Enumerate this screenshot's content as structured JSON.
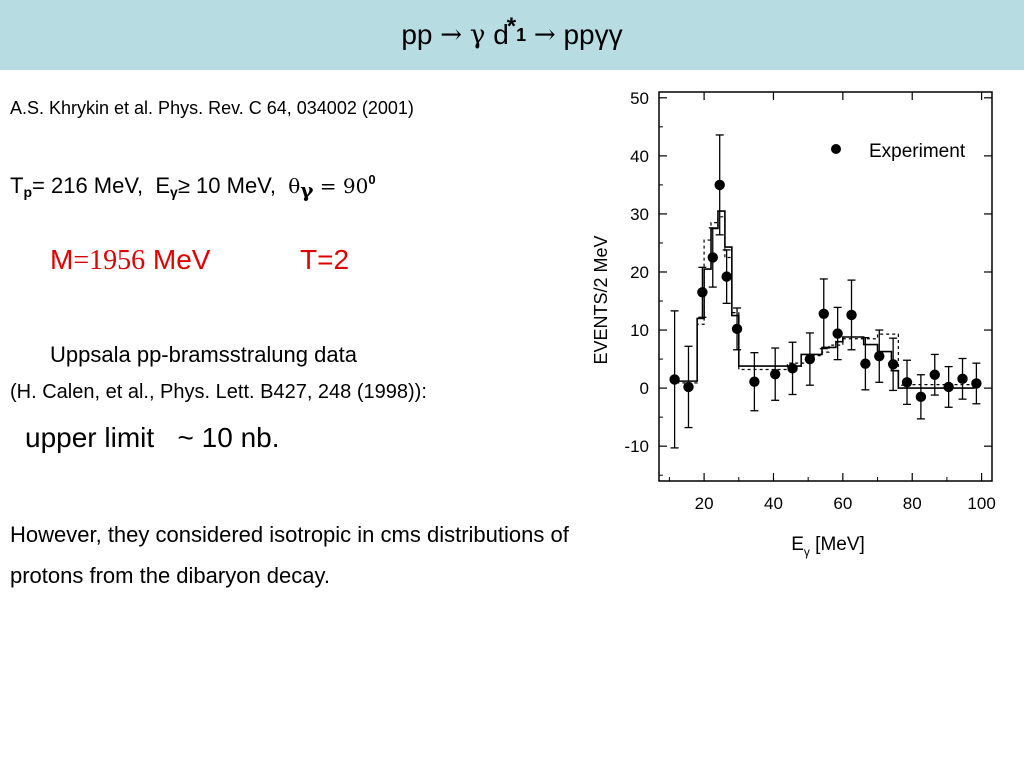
{
  "header": {
    "title_part1": "pp",
    "arrow1": "→",
    "gamma": "γ",
    "d_label": "d",
    "star": "*",
    "subscript": "1",
    "arrow2": "→",
    "final_state": "ppγγ"
  },
  "reference": "A.S. Khrykin et al. Phys. Rev. C 64, 034002 (2001)",
  "parameters": {
    "tp_label": "T",
    "tp_sub": "p",
    "tp_value": "= 216 MeV,",
    "eg_label": "E",
    "eg_sub": "γ",
    "eg_value": "≥ 10 MeV,",
    "theta_label": "θ",
    "theta_sub": "γ",
    "theta_eq": " = 90",
    "theta_sup": "0"
  },
  "mass": {
    "label": "M",
    "eq_value": "=1956",
    "unit": " MeV"
  },
  "isospin": "T=2",
  "uppsala": "Uppsala pp-bramsstralung data",
  "calen_ref": "(H. Calen, et al., Phys. Lett. B427, 248 (1998)):",
  "upper_limit": {
    "text": "upper limit",
    "tilde": "~",
    "value": " 10 nb."
  },
  "conclusion": "However, they considered isotropic in cms distributions of protons from the dibaryon decay.",
  "chart_data": {
    "type": "scatter",
    "title": "",
    "xlabel": "E",
    "xlabel_sub": "γ",
    "xlabel_unit": " [MeV]",
    "ylabel": "EVENTS/2 MeV",
    "xlim": [
      7,
      103
    ],
    "ylim": [
      -16,
      51
    ],
    "x_ticks": [
      20,
      40,
      60,
      80,
      100
    ],
    "y_ticks": [
      -10,
      0,
      10,
      20,
      30,
      40,
      50
    ],
    "legend": {
      "label": "Experiment",
      "position": "top-right"
    },
    "series": [
      {
        "name": "Experiment",
        "points": [
          {
            "x": 11.5,
            "y": 1.5,
            "err": 11.8
          },
          {
            "x": 15.5,
            "y": 0.2,
            "err": 7.0
          },
          {
            "x": 19.5,
            "y": 16.5,
            "err": 4.3
          },
          {
            "x": 22.5,
            "y": 22.5,
            "err": 5.1
          },
          {
            "x": 24.5,
            "y": 35.0,
            "err": 8.6
          },
          {
            "x": 26.5,
            "y": 19.2,
            "err": 4.6
          },
          {
            "x": 29.5,
            "y": 10.2,
            "err": 3.6
          },
          {
            "x": 34.5,
            "y": 1.1,
            "err": 5.0
          },
          {
            "x": 40.5,
            "y": 2.4,
            "err": 4.5
          },
          {
            "x": 45.5,
            "y": 3.4,
            "err": 4.5
          },
          {
            "x": 50.5,
            "y": 5.0,
            "err": 4.5
          },
          {
            "x": 54.5,
            "y": 12.8,
            "err": 6.0
          },
          {
            "x": 58.5,
            "y": 9.4,
            "err": 4.5
          },
          {
            "x": 62.5,
            "y": 12.6,
            "err": 6.0
          },
          {
            "x": 66.5,
            "y": 4.2,
            "err": 4.5
          },
          {
            "x": 70.5,
            "y": 5.5,
            "err": 4.5
          },
          {
            "x": 74.5,
            "y": 4.1,
            "err": 4.5
          },
          {
            "x": 78.5,
            "y": 1.0,
            "err": 3.8
          },
          {
            "x": 82.5,
            "y": -1.5,
            "err": 3.8
          },
          {
            "x": 86.5,
            "y": 2.3,
            "err": 3.5
          },
          {
            "x": 90.5,
            "y": 0.2,
            "err": 3.5
          },
          {
            "x": 94.5,
            "y": 1.6,
            "err": 3.5
          },
          {
            "x": 98.5,
            "y": 0.8,
            "err": 3.5
          }
        ]
      },
      {
        "name": "Histogram (solid)",
        "style": "solid",
        "steps": [
          {
            "x0": 12,
            "x1": 18,
            "y": 1.2
          },
          {
            "x0": 18,
            "x1": 20,
            "y": 12
          },
          {
            "x0": 20,
            "x1": 22,
            "y": 20.5
          },
          {
            "x0": 22,
            "x1": 24,
            "y": 27.5
          },
          {
            "x0": 24,
            "x1": 26,
            "y": 30.5
          },
          {
            "x0": 26,
            "x1": 28,
            "y": 24.3
          },
          {
            "x0": 28,
            "x1": 30,
            "y": 12.5
          },
          {
            "x0": 30,
            "x1": 32,
            "y": 3.8
          },
          {
            "x0": 32,
            "x1": 48,
            "y": 3.8
          },
          {
            "x0": 48,
            "x1": 54,
            "y": 5.8
          },
          {
            "x0": 54,
            "x1": 58,
            "y": 7.0
          },
          {
            "x0": 58,
            "x1": 60,
            "y": 8.0
          },
          {
            "x0": 60,
            "x1": 66,
            "y": 8.8
          },
          {
            "x0": 66,
            "x1": 70,
            "y": 7.5
          },
          {
            "x0": 70,
            "x1": 74,
            "y": 6.3
          },
          {
            "x0": 74,
            "x1": 76,
            "y": 3.0
          },
          {
            "x0": 76,
            "x1": 98,
            "y": 0.0
          }
        ]
      },
      {
        "name": "Histogram (dashed)",
        "style": "dashed",
        "steps": [
          {
            "x0": 12,
            "x1": 18,
            "y": 0.9
          },
          {
            "x0": 18,
            "x1": 20,
            "y": 11
          },
          {
            "x0": 20,
            "x1": 22,
            "y": 25.5
          },
          {
            "x0": 22,
            "x1": 24,
            "y": 28.5
          },
          {
            "x0": 24,
            "x1": 26,
            "y": 29.5
          },
          {
            "x0": 26,
            "x1": 28,
            "y": 22.5
          },
          {
            "x0": 28,
            "x1": 30,
            "y": 13
          },
          {
            "x0": 30,
            "x1": 32,
            "y": 3.2
          },
          {
            "x0": 32,
            "x1": 44,
            "y": 3.2
          },
          {
            "x0": 44,
            "x1": 50,
            "y": 4.3
          },
          {
            "x0": 50,
            "x1": 54,
            "y": 5.6
          },
          {
            "x0": 54,
            "x1": 56,
            "y": 6.2
          },
          {
            "x0": 56,
            "x1": 60,
            "y": 7.4
          },
          {
            "x0": 60,
            "x1": 70,
            "y": 8.5
          },
          {
            "x0": 70,
            "x1": 76,
            "y": 9.3
          },
          {
            "x0": 76,
            "x1": 78,
            "y": 0.5
          },
          {
            "x0": 78,
            "x1": 98,
            "y": 0.6
          }
        ]
      }
    ]
  }
}
